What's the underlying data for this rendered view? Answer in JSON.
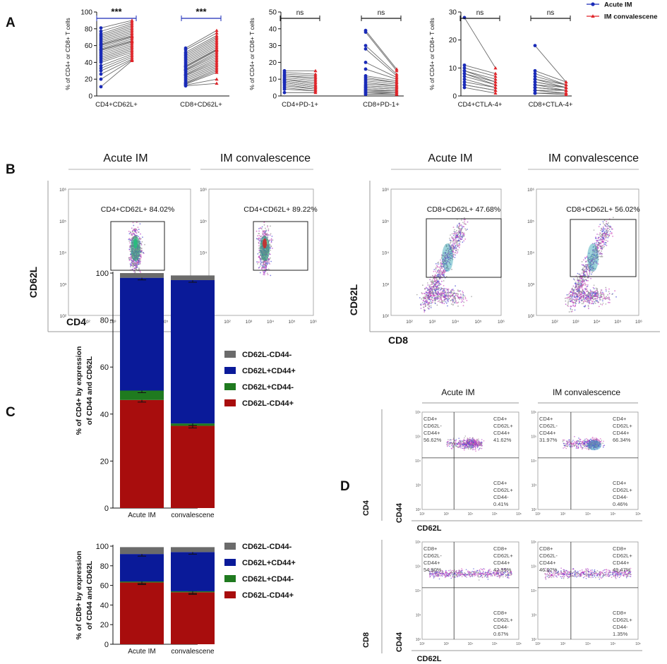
{
  "panel_letters": [
    "A",
    "B",
    "C",
    "D"
  ],
  "colors": {
    "acute": "#1a2bb8",
    "conv": "#e0252a",
    "line": "#6b6b6b",
    "darkblue": "#0a1a99",
    "green": "#1f7a1f",
    "red": "#a80d0d",
    "gray": "#6b6b6b"
  },
  "panelA": {
    "legend": [
      {
        "label": "Acute IM",
        "marker": "circle"
      },
      {
        "label": "IM convalescene",
        "marker": "triangle"
      }
    ],
    "charts": [
      {
        "ylabel": "% of CD4+ or CD8+ T cells",
        "ylim": [
          0,
          100
        ],
        "ticks": [
          0,
          20,
          40,
          60,
          80,
          100
        ],
        "groups": [
          {
            "label": "CD4+CD62L+",
            "sig": "***",
            "acute": [
              81,
              77,
              74,
              72,
              70,
              68,
              66,
              64,
              62,
              61,
              60,
              58,
              56,
              55,
              54,
              52,
              50,
              48,
              46,
              44,
              42,
              40,
              36,
              33,
              30,
              26,
              20,
              11
            ],
            "conv": [
              90,
              88,
              86,
              84,
              82,
              80,
              78,
              76,
              74,
              72,
              71,
              70,
              68,
              66,
              65,
              64,
              62,
              60,
              58,
              56,
              54,
              52,
              50,
              48,
              46,
              44,
              43,
              42
            ]
          },
          {
            "label": "CD8+CD62L+",
            "sig": "***",
            "acute": [
              57,
              55,
              52,
              50,
              48,
              46,
              44,
              42,
              40,
              38,
              36,
              35,
              34,
              32,
              31,
              30,
              28,
              26,
              25,
              24,
              22,
              20,
              18,
              16,
              15,
              14,
              13,
              12
            ],
            "conv": [
              78,
              75,
              72,
              70,
              68,
              66,
              64,
              62,
              60,
              58,
              56,
              55,
              54,
              52,
              50,
              48,
              46,
              44,
              42,
              40,
              38,
              36,
              34,
              32,
              30,
              28,
              20,
              15
            ]
          }
        ]
      },
      {
        "ylabel": "% of CD4+ or CD8+ T cells",
        "ylim": [
          0,
          50
        ],
        "ticks": [
          0,
          10,
          20,
          30,
          40,
          50
        ],
        "groups": [
          {
            "label": "CD4+PD-1+",
            "sig": "ns",
            "acute": [
              15,
              14,
              13,
              12,
              12,
              11,
              10,
              10,
              9,
              9,
              8,
              8,
              7,
              6,
              5,
              4,
              2
            ],
            "conv": [
              15,
              13,
              12,
              11,
              10,
              9,
              8,
              7,
              6,
              6,
              5,
              5,
              4,
              4,
              3,
              3,
              2
            ]
          },
          {
            "label": "CD8+PD-1+",
            "sig": "ns",
            "acute": [
              39,
              38,
              30,
              28,
              20,
              16,
              12,
              11,
              10,
              9,
              8,
              7,
              6,
              6,
              5,
              5,
              4,
              4,
              3,
              3,
              2,
              2,
              1,
              1
            ],
            "conv": [
              16,
              15,
              13,
              12,
              11,
              10,
              9,
              8,
              8,
              7,
              6,
              6,
              5,
              5,
              4,
              4,
              3,
              3,
              3,
              2,
              2,
              1,
              1,
              1
            ]
          }
        ]
      },
      {
        "ylabel": "% of CD4+ or CD8+ T cells",
        "ylim": [
          0,
          30
        ],
        "ticks": [
          0,
          10,
          20,
          30
        ],
        "groups": [
          {
            "label": "CD4+CTLA-4+",
            "sig": "ns",
            "acute": [
              28,
              11,
              10,
              9,
              9,
              8,
              8,
              7,
              6,
              5,
              4,
              4,
              3
            ],
            "conv": [
              10,
              8,
              7,
              6,
              5,
              5,
              4,
              4,
              3,
              3,
              2,
              2,
              1
            ]
          },
          {
            "label": "CD8+CTLA-4+",
            "sig": "ns",
            "acute": [
              18,
              9,
              8,
              7,
              6,
              6,
              5,
              5,
              4,
              4,
              3,
              3,
              3,
              2,
              2,
              2,
              1,
              1,
              1,
              1
            ],
            "conv": [
              5,
              5,
              4,
              4,
              4,
              3,
              3,
              3,
              3,
              2,
              2,
              2,
              2,
              2,
              1,
              1,
              1,
              1,
              1,
              0.5
            ]
          }
        ]
      }
    ]
  },
  "panelB": {
    "ylabel_left": "CD62L",
    "xlabel_left": "CD4",
    "ylabel_right": "CD62L",
    "xlabel_right": "CD8",
    "plots": [
      {
        "title": "Acute IM",
        "gate": "CD4+CD62L+  84.02%"
      },
      {
        "title": "IM convalescence",
        "gate": "CD4+CD62L+  89.22%"
      },
      {
        "title": "Acute IM",
        "gate": "CD8+CD62L+  47.68%"
      },
      {
        "title": "IM convalescence",
        "gate": "CD8+CD62L+  56.02%"
      }
    ],
    "axis_ticks": [
      "10²",
      "10³",
      "10⁴",
      "10⁵",
      "10⁶"
    ]
  },
  "panelC": {
    "charts": [
      {
        "ylabel": "% of CD4+ by expression of CD44 and CD62L",
        "categories": [
          "Acute IM",
          "convalescene"
        ],
        "ticks": [
          0,
          20,
          40,
          60,
          80,
          100
        ],
        "series": [
          {
            "name": "CD62L-CD44+",
            "values": [
              46,
              35
            ]
          },
          {
            "name": "CD62L+CD44-",
            "values": [
              4,
              1
            ]
          },
          {
            "name": "CD62L+CD44+",
            "values": [
              48,
              61
            ]
          },
          {
            "name": "CD62L-CD44-",
            "values": [
              2,
              2
            ]
          }
        ]
      },
      {
        "ylabel": "% of CD8+ by expression of CD44 and CD62L",
        "categories": [
          "Acute IM",
          "convalescene"
        ],
        "ticks": [
          0,
          20,
          40,
          60,
          80,
          100
        ],
        "series": [
          {
            "name": "CD62L-CD44+",
            "values": [
              63,
              53
            ]
          },
          {
            "name": "CD62L+CD44-",
            "values": [
              1,
              1
            ]
          },
          {
            "name": "CD62L+CD44+",
            "values": [
              28,
              40
            ]
          },
          {
            "name": "CD62L-CD44-",
            "values": [
              7,
              5
            ]
          }
        ]
      }
    ],
    "legend": [
      "CD62L-CD44-",
      "CD62L+CD44+",
      "CD62L+CD44-",
      "CD62L-CD44+"
    ]
  },
  "panelD": {
    "col_titles": [
      "Acute IM",
      "IM convalescence"
    ],
    "row_labels": [
      "CD4",
      "CD8"
    ],
    "ylabel": "CD44",
    "xlabel": "CD62L",
    "quads": [
      {
        "tl": [
          "CD4+",
          "CD62L-",
          "CD44+",
          "56.62%"
        ],
        "tr": [
          "CD4+",
          "CD62L+",
          "CD44+",
          "41.62%"
        ],
        "br": [
          "CD4+",
          "CD62L+",
          "CD44-",
          "0.41%"
        ]
      },
      {
        "tl": [
          "CD4+",
          "CD62L-",
          "CD44+",
          "31.97%"
        ],
        "tr": [
          "CD4+",
          "CD62L+",
          "CD44+",
          "66.34%"
        ],
        "br": [
          "CD4+",
          "CD62L+",
          "CD44-",
          "0.46%"
        ]
      },
      {
        "tl": [
          "CD8+",
          "CD62L-",
          "CD44+",
          "54.90%"
        ],
        "tr": [
          "CD8+",
          "CD62L+",
          "CD44+",
          "42.99%"
        ],
        "br": [
          "CD8+",
          "CD62L+",
          "CD44-",
          "0.67%"
        ]
      },
      {
        "tl": [
          "CD8+",
          "CD62L-",
          "CD44+",
          "46.62%"
        ],
        "tr": [
          "CD8+",
          "CD62L+",
          "CD44+",
          "49.47%"
        ],
        "br": [
          "CD8+",
          "CD62L+",
          "CD44-",
          "1.35%"
        ]
      }
    ],
    "axis_ticks": [
      "10²",
      "10³",
      "10⁴",
      "10⁵",
      "10⁶"
    ]
  }
}
